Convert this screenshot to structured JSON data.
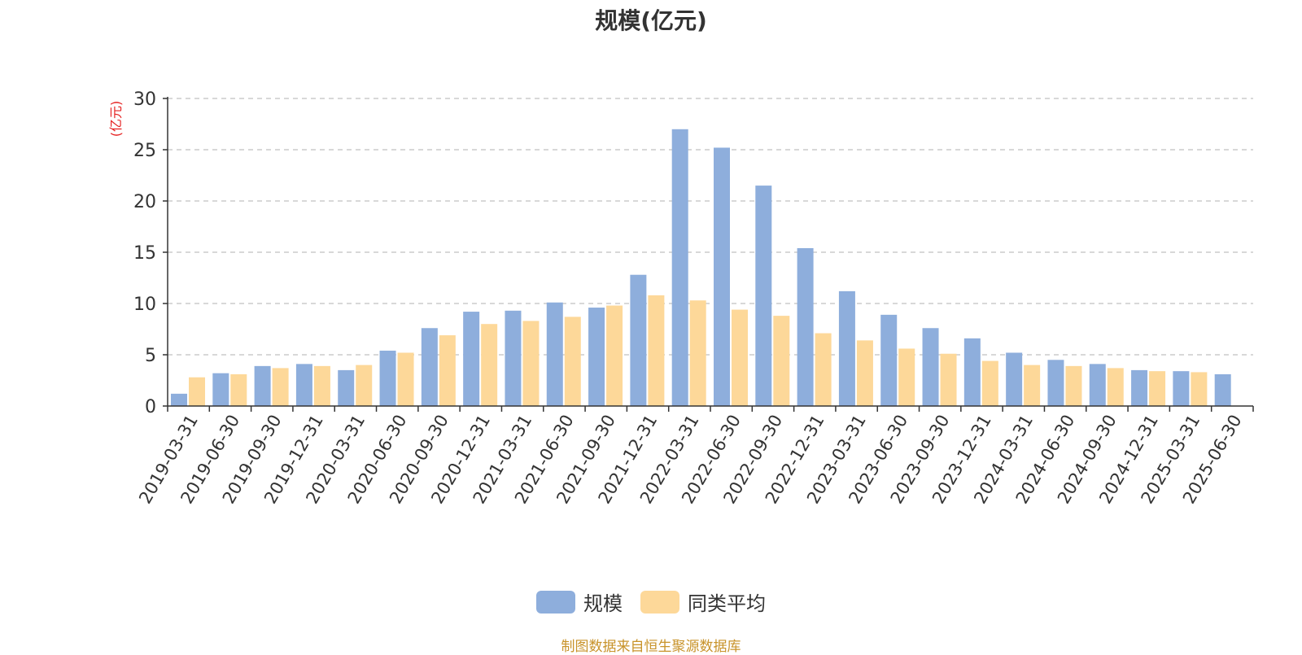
{
  "colors": {
    "series1": "#8eaedc",
    "series2": "#fdd899",
    "axis": "#333333",
    "grid": "#cccccc",
    "unit": "#e52222",
    "source": "#c8932a"
  },
  "legend": {
    "items": [
      "规模",
      "同类平均"
    ]
  },
  "source_text": "制图数据来自恒生聚源数据库",
  "chart_data": {
    "type": "bar",
    "title": "规模(亿元)",
    "ylabel": "(亿元)",
    "xlabel": "",
    "ylim": [
      0,
      30
    ],
    "yticks": [
      0,
      5,
      10,
      15,
      20,
      25,
      30
    ],
    "grid": true,
    "legend_position": "bottom",
    "categories": [
      "2019-03-31",
      "2019-06-30",
      "2019-09-30",
      "2019-12-31",
      "2020-03-31",
      "2020-06-30",
      "2020-09-30",
      "2020-12-31",
      "2021-03-31",
      "2021-06-30",
      "2021-09-30",
      "2021-12-31",
      "2022-03-31",
      "2022-06-30",
      "2022-09-30",
      "2022-12-31",
      "2023-03-31",
      "2023-06-30",
      "2023-09-30",
      "2023-12-31",
      "2024-03-31",
      "2024-06-30",
      "2024-09-30",
      "2024-12-31",
      "2025-03-31",
      "2025-06-30"
    ],
    "series": [
      {
        "name": "规模",
        "values": [
          1.2,
          3.2,
          3.9,
          4.1,
          3.5,
          5.4,
          7.6,
          9.2,
          9.3,
          10.1,
          9.6,
          12.8,
          27.0,
          25.2,
          21.5,
          15.4,
          11.2,
          8.9,
          7.6,
          6.6,
          5.2,
          4.5,
          4.1,
          3.5,
          3.4,
          3.1
        ]
      },
      {
        "name": "同类平均",
        "values": [
          2.8,
          3.1,
          3.7,
          3.9,
          4.0,
          5.2,
          6.9,
          8.0,
          8.3,
          8.7,
          9.8,
          10.8,
          10.3,
          9.4,
          8.8,
          7.1,
          6.4,
          5.6,
          5.1,
          4.4,
          4.0,
          3.9,
          3.7,
          3.4,
          3.3,
          null
        ]
      }
    ]
  }
}
